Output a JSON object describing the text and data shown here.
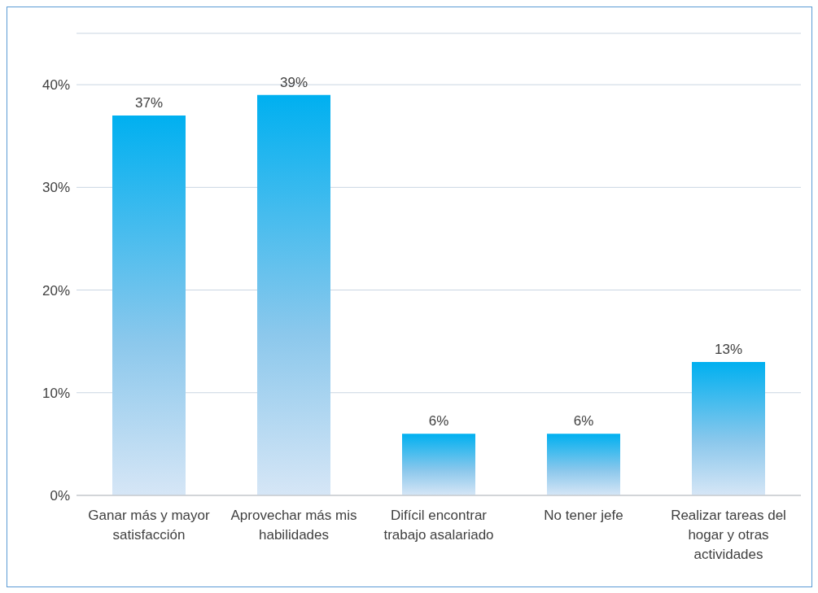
{
  "chart_data": {
    "type": "bar",
    "categories": [
      "Ganar más y mayor satisfacción",
      "Aprovechar más mis habilidades",
      "Difícil encontrar trabajo asalariado",
      "No tener jefe",
      "Realizar tareas del hogar y otras actividades"
    ],
    "values": [
      37,
      39,
      6,
      6,
      13
    ],
    "value_labels": [
      "37%",
      "39%",
      "6%",
      "6%",
      "13%"
    ],
    "color": "#00b0f0",
    "ylim": [
      0,
      45
    ],
    "yticks": [
      {
        "value": 0,
        "label": "0%"
      },
      {
        "value": 10,
        "label": "10%"
      },
      {
        "value": 20,
        "label": "20%"
      },
      {
        "value": 30,
        "label": "30%"
      },
      {
        "value": 40,
        "label": "40%"
      }
    ],
    "grid": "y"
  }
}
